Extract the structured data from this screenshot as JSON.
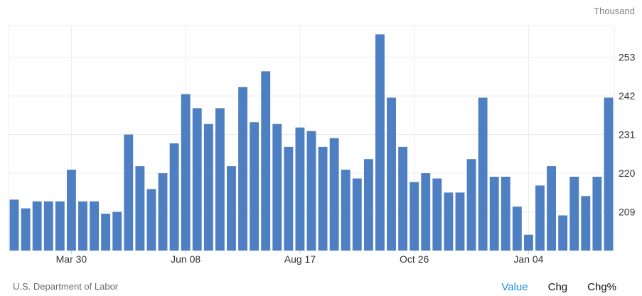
{
  "header": {
    "unit_label": "Thousand"
  },
  "footer": {
    "source": "U.S. Department of Labor"
  },
  "tabs": [
    {
      "label": "Value",
      "active": true
    },
    {
      "label": "Chg",
      "active": false
    },
    {
      "label": "Chg%",
      "active": false
    }
  ],
  "colors": {
    "bar": "#4d7fc2",
    "grid": "#ececec",
    "axis_text": "#333333",
    "tab_active": "#1a8fe0"
  },
  "chart_data": {
    "type": "bar",
    "title": "",
    "xlabel": "",
    "ylabel": "",
    "grid": true,
    "y_axis_side": "right",
    "ylim": [
      198,
      262
    ],
    "yticks": [
      209,
      220,
      231,
      242,
      253
    ],
    "x_tick_labels": [
      {
        "label": "Mar 30",
        "index": 5
      },
      {
        "label": "Jun 08",
        "index": 15
      },
      {
        "label": "Aug 17",
        "index": 25
      },
      {
        "label": "Oct 26",
        "index": 35
      },
      {
        "label": "Jan 04",
        "index": 45
      }
    ],
    "values": [
      212.5,
      210,
      212,
      212,
      212,
      221,
      212,
      212,
      208.5,
      209,
      231,
      222,
      215.5,
      220,
      228.5,
      242.5,
      238.5,
      234,
      238.5,
      222,
      244.5,
      234.5,
      249,
      234,
      227.5,
      233,
      232,
      227.5,
      230,
      221,
      218.5,
      224,
      259.5,
      241.5,
      227.5,
      217.5,
      220,
      218.5,
      214.5,
      214.5,
      224,
      241.5,
      219,
      219,
      210.5,
      202.5,
      216.5,
      222,
      208,
      219,
      213.5,
      219,
      241.5
    ]
  }
}
